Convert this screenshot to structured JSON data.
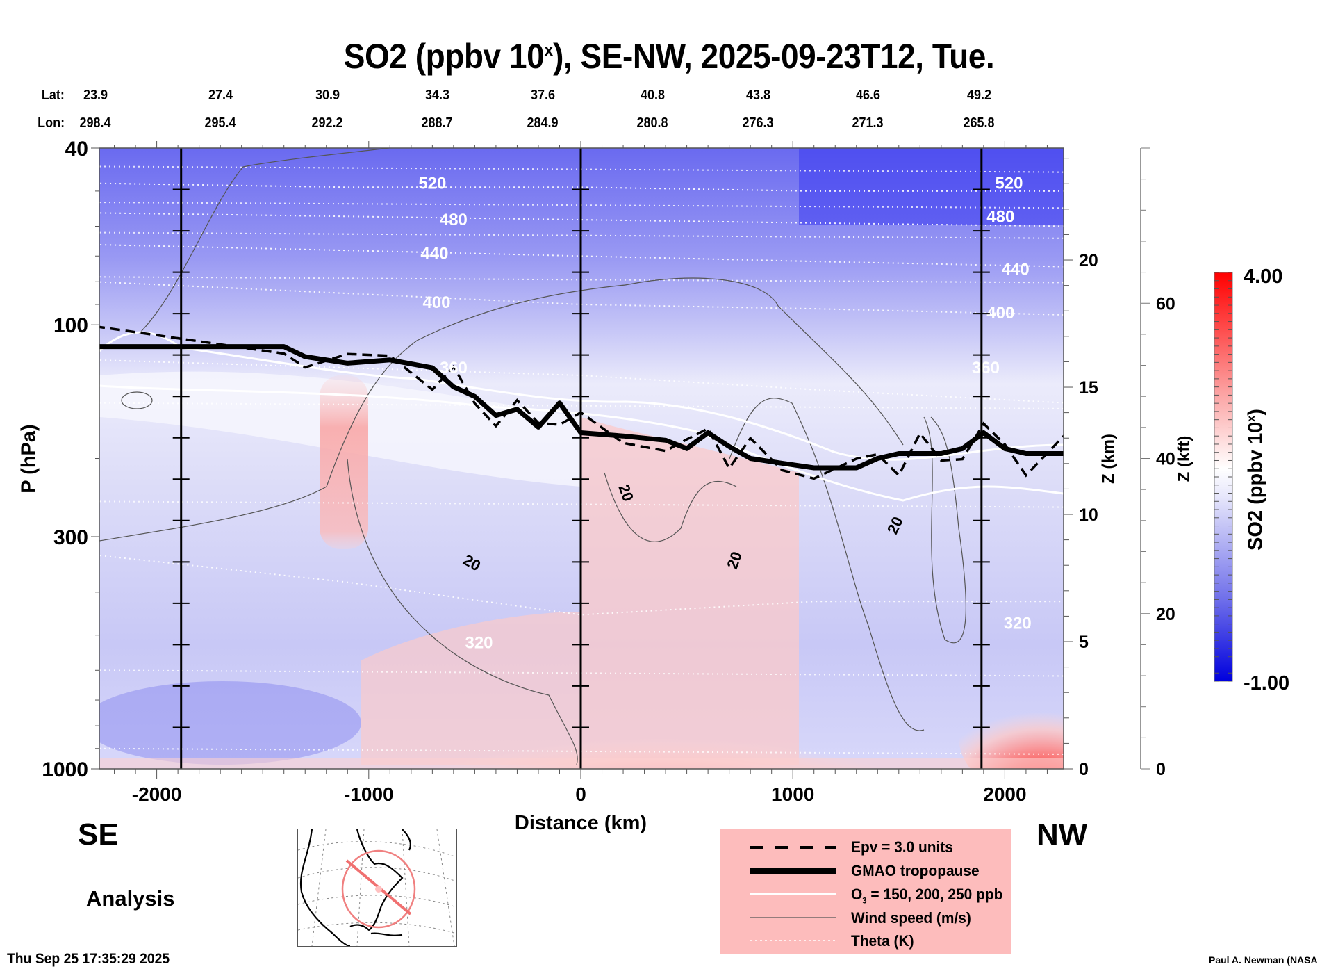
{
  "title": {
    "main": "SO2 (ppbv 10",
    "sup": "x",
    "rest": "), SE-NW, 2025-09-23T12, Tue."
  },
  "location_header": {
    "lat_label": "Lat:",
    "lon_label": "Lon:",
    "lat": [
      "23.9",
      "27.4",
      "30.9",
      "34.3",
      "37.6",
      "40.8",
      "43.8",
      "46.6",
      "49.2"
    ],
    "lon": [
      "298.4",
      "295.4",
      "292.2",
      "288.7",
      "284.9",
      "280.8",
      "276.3",
      "271.3",
      "265.8"
    ]
  },
  "labels": {
    "se": "SE",
    "nw": "NW",
    "analysis": "Analysis",
    "timestamp": "Thu Sep 25 17:35:29 2025",
    "credit": "Paul A. Newman (NASA"
  },
  "legend": {
    "items": [
      {
        "style": "dashed",
        "label": "Epv = 3.0 units"
      },
      {
        "style": "thick",
        "label": "GMAO tropopause"
      },
      {
        "style": "white",
        "label": "O3 = 150, 200, 250 ppb",
        "label_pre": "O",
        "label_sub": "3",
        "label_post": " = 150, 200, 250 ppb"
      },
      {
        "style": "thin",
        "label": "Wind speed (m/s)"
      },
      {
        "style": "dotted",
        "label": "Theta (K)"
      }
    ]
  },
  "chart_data": {
    "type": "heatmap",
    "title": "SO2 (ppbv 10^x), SE-NW, 2025-09-23T12, Tue.",
    "xlabel": "Distance (km)",
    "ylabel": "P (hPa)",
    "y2label": "Z (km)",
    "y3label": "Z (kft)",
    "xlim": [
      -2290,
      2290
    ],
    "ylim": [
      1000,
      40
    ],
    "yscale": "log",
    "xticks": [
      -2000,
      -1000,
      0,
      1000,
      2000
    ],
    "yticks": [
      40,
      100,
      300,
      1000
    ],
    "y2ticks": [
      0,
      5,
      10,
      15,
      20
    ],
    "y3ticks": [
      0,
      20,
      40,
      60
    ],
    "vertical_markers_km": [
      -1885,
      0,
      1890
    ],
    "colorbar": {
      "label": "SO2 (ppbv 10x)",
      "min": -1.0,
      "max": 4.0,
      "min_label": "-1.00",
      "max_label": "4.00",
      "low_color": "#0000dd",
      "mid_color": "#ffffff",
      "high_color": "#ff0000"
    },
    "theta_contours_K": [
      {
        "value": 520,
        "p": [
          48,
          49,
          49,
          50,
          50
        ]
      },
      {
        "value": 480,
        "p": [
          56,
          57,
          58,
          59,
          60
        ]
      },
      {
        "value": 440,
        "p": [
          66,
          68,
          70,
          72,
          74
        ]
      },
      {
        "value": 400,
        "p": [
          80,
          85,
          90,
          92,
          95
        ]
      },
      {
        "value": 360,
        "p": [
          120,
          125,
          130,
          140,
          150
        ]
      },
      {
        "value": 320,
        "p": [
          330,
          380,
          450,
          420,
          420
        ]
      }
    ],
    "theta_labels": [
      {
        "value": "520",
        "x": -700,
        "p": 48
      },
      {
        "value": "480",
        "x": -600,
        "p": 58
      },
      {
        "value": "440",
        "x": -690,
        "p": 69
      },
      {
        "value": "400",
        "x": -680,
        "p": 89
      },
      {
        "value": "360",
        "x": -600,
        "p": 125
      },
      {
        "value": "320",
        "x": -480,
        "p": 520
      },
      {
        "value": "520",
        "x": 2020,
        "p": 48
      },
      {
        "value": "480",
        "x": 1980,
        "p": 57
      },
      {
        "value": "440",
        "x": 2050,
        "p": 75
      },
      {
        "value": "400",
        "x": 1980,
        "p": 94
      },
      {
        "value": "360",
        "x": 1910,
        "p": 125
      },
      {
        "value": "320",
        "x": 2060,
        "p": 470
      }
    ],
    "tropopause_hPa": {
      "x": [
        -2290,
        -1400,
        -1300,
        -1100,
        -900,
        -700,
        -600,
        -500,
        -400,
        -300,
        -200,
        -100,
        0,
        200,
        400,
        500,
        600,
        700,
        800,
        950,
        1100,
        1300,
        1400,
        1500,
        1600,
        1700,
        1800,
        1900,
        2000,
        2100,
        2290
      ],
      "p": [
        112,
        112,
        118,
        122,
        120,
        125,
        138,
        145,
        160,
        155,
        170,
        150,
        175,
        178,
        182,
        190,
        175,
        188,
        200,
        205,
        210,
        210,
        200,
        195,
        195,
        195,
        190,
        175,
        190,
        195,
        195
      ]
    },
    "wind_label": "20",
    "so2_features": [
      {
        "desc": "surface high SO2",
        "x_range": [
          -300,
          1100
        ],
        "p_range": [
          800,
          1000
        ],
        "value": 3.8
      },
      {
        "desc": "mid-trop plume",
        "x_range": [
          -1200,
          -1050
        ],
        "p_range": [
          150,
          320
        ],
        "value": 1.6
      },
      {
        "desc": "NW surface high",
        "x_range": [
          1850,
          2290
        ],
        "p_range": [
          700,
          1000
        ],
        "value": 3.0
      },
      {
        "desc": "stratosphere low",
        "x_range": [
          -2290,
          2290
        ],
        "p_range": [
          40,
          100
        ],
        "value": -0.6
      }
    ]
  }
}
